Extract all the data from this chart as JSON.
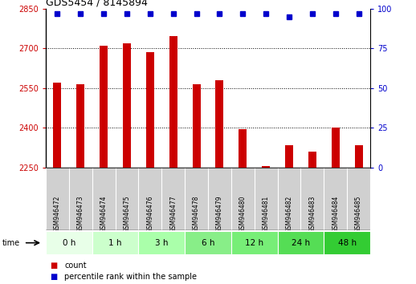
{
  "title": "GDS5454 / 8145894",
  "samples": [
    "GSM946472",
    "GSM946473",
    "GSM946474",
    "GSM946475",
    "GSM946476",
    "GSM946477",
    "GSM946478",
    "GSM946479",
    "GSM946480",
    "GSM946481",
    "GSM946482",
    "GSM946483",
    "GSM946484",
    "GSM946485"
  ],
  "counts": [
    2570,
    2565,
    2710,
    2720,
    2685,
    2745,
    2565,
    2580,
    2395,
    2255,
    2335,
    2310,
    2400,
    2335
  ],
  "percentile_ranks": [
    97,
    97,
    97,
    97,
    97,
    97,
    97,
    97,
    97,
    97,
    95,
    97,
    97,
    97
  ],
  "ylim_left": [
    2250,
    2850
  ],
  "ylim_right": [
    0,
    100
  ],
  "yticks_left": [
    2250,
    2400,
    2550,
    2700,
    2850
  ],
  "yticks_right": [
    0,
    25,
    50,
    75,
    100
  ],
  "bar_color": "#cc0000",
  "dot_color": "#0000cc",
  "time_groups": [
    {
      "label": "0 h",
      "indices": [
        0,
        1
      ],
      "color": "#e8ffe8"
    },
    {
      "label": "1 h",
      "indices": [
        2,
        3
      ],
      "color": "#ccffcc"
    },
    {
      "label": "3 h",
      "indices": [
        4,
        5
      ],
      "color": "#aaffaa"
    },
    {
      "label": "6 h",
      "indices": [
        6,
        7
      ],
      "color": "#88ee88"
    },
    {
      "label": "12 h",
      "indices": [
        8,
        9
      ],
      "color": "#77ee77"
    },
    {
      "label": "24 h",
      "indices": [
        10,
        11
      ],
      "color": "#55dd55"
    },
    {
      "label": "48 h",
      "indices": [
        12,
        13
      ],
      "color": "#33cc33"
    }
  ],
  "time_label": "time",
  "legend_count_label": "count",
  "legend_percentile_label": "percentile rank within the sample",
  "bg_color": "#ffffff",
  "sample_row_color": "#d0d0d0",
  "bar_width": 0.35,
  "dot_size": 5
}
